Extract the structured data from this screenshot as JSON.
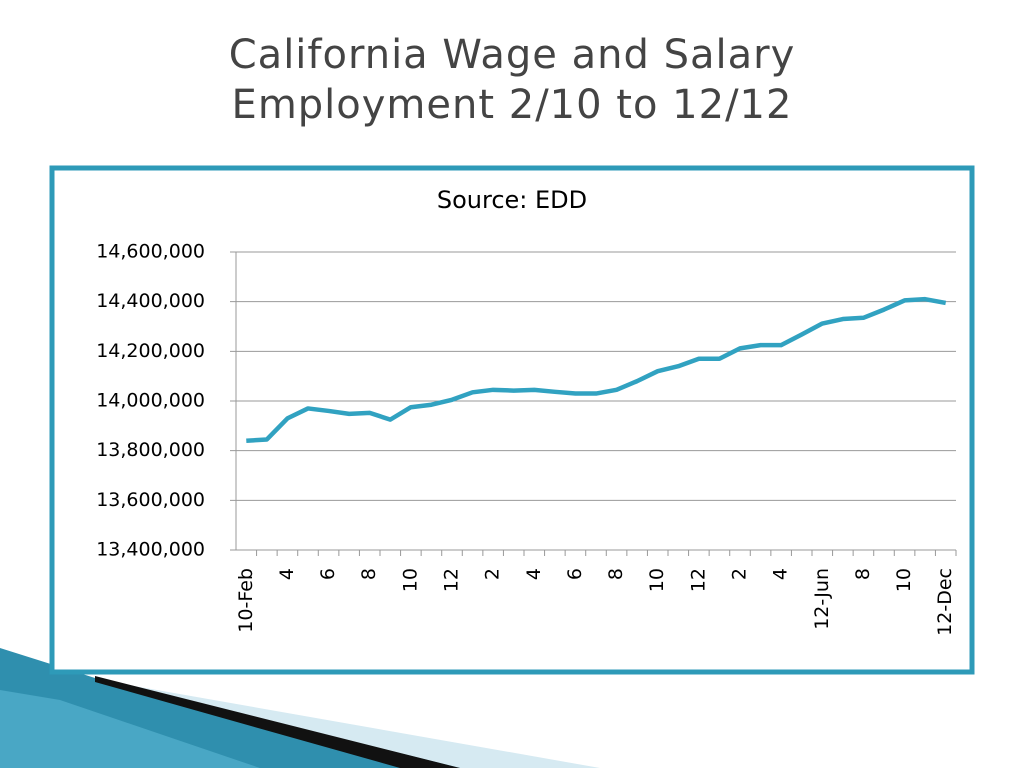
{
  "title": "California Wage and Salary Employment 2/10 to 12/12",
  "chart_data": {
    "type": "line",
    "subtitle": "Source: EDD",
    "color": "#31a2c1",
    "grid": true,
    "categories": [
      "10-Feb",
      null,
      "4",
      null,
      "6",
      null,
      "8",
      null,
      "10",
      null,
      "12",
      null,
      "2",
      null,
      "4",
      null,
      "6",
      null,
      "8",
      null,
      "10",
      null,
      "12",
      null,
      "2",
      null,
      "4",
      null,
      "12-Jun",
      null,
      "8",
      null,
      "10",
      null,
      "12-Dec"
    ],
    "values": [
      13840000,
      13845000,
      13930000,
      13970000,
      13960000,
      13948000,
      13952000,
      13925000,
      13975000,
      13985000,
      14005000,
      14035000,
      14045000,
      14042000,
      14045000,
      14037000,
      14030000,
      14030000,
      14045000,
      14080000,
      14120000,
      14140000,
      14170000,
      14170000,
      14212000,
      14225000,
      14225000,
      14268000,
      14312000,
      14330000,
      14335000,
      14368000,
      14405000,
      14410000,
      14395000
    ],
    "ylim": [
      13400000,
      14600000
    ],
    "yticks": [
      {
        "value": 13400000,
        "label": "13,400,000"
      },
      {
        "value": 13600000,
        "label": "13,600,000"
      },
      {
        "value": 13800000,
        "label": "13,800,000"
      },
      {
        "value": 14000000,
        "label": "14,000,000"
      },
      {
        "value": 14200000,
        "label": "14,200,000"
      },
      {
        "value": 14400000,
        "label": "14,400,000"
      },
      {
        "value": 14600000,
        "label": "14,600,000"
      }
    ]
  }
}
